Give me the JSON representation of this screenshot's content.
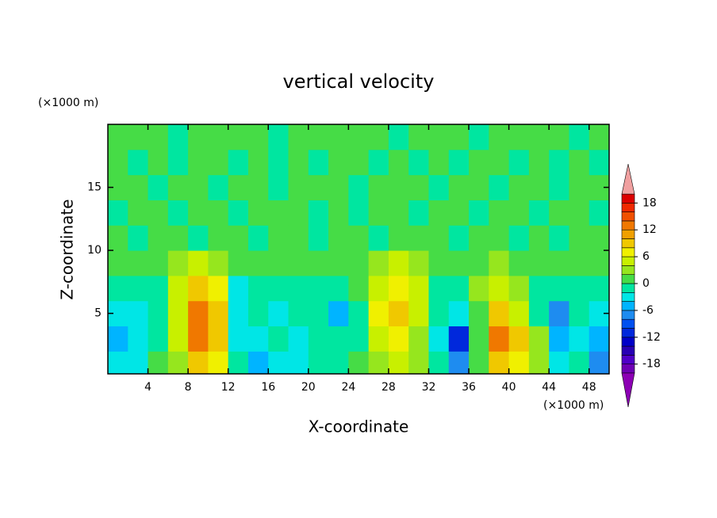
{
  "chart_data": {
    "type": "heatmap",
    "title": "vertical velocity",
    "x_label": "X-coordinate",
    "y_label": "Z-coordinate",
    "x_unit": "(×1000 m)",
    "y_unit": "(×1000 m)",
    "xlim": [
      0,
      50
    ],
    "ylim": [
      0.2,
      20
    ],
    "xticks": [
      4,
      8,
      12,
      16,
      20,
      24,
      28,
      32,
      36,
      40,
      44,
      48
    ],
    "yticks": [
      5,
      10,
      15
    ],
    "x": [
      1,
      3,
      5,
      7,
      9,
      11,
      13,
      15,
      17,
      19,
      21,
      23,
      25,
      27,
      29,
      31,
      33,
      35,
      37,
      39,
      41,
      43,
      45,
      47,
      49
    ],
    "y": [
      1,
      3,
      5,
      7,
      9,
      11,
      13,
      15,
      17,
      19
    ],
    "z": [
      [
        -3,
        -4,
        1,
        2,
        8,
        6,
        -2,
        -5,
        -3,
        -3,
        -2,
        -2,
        1,
        3,
        4,
        2,
        -2,
        -8,
        1,
        8,
        6,
        2,
        -3,
        -2,
        -8
      ],
      [
        -5,
        -4,
        -2,
        4,
        12,
        8,
        -3,
        -4,
        -2,
        -3,
        -2,
        -2,
        -1,
        5,
        6,
        3,
        -3,
        -12,
        0,
        12,
        8,
        2,
        -6,
        -3,
        -6
      ],
      [
        -3,
        -3,
        -2,
        5,
        12,
        8,
        -4,
        -2,
        -3,
        -2,
        -2,
        -6,
        -1,
        6,
        8,
        4,
        -2,
        -3,
        1,
        8,
        4,
        -2,
        -8,
        -2,
        -3
      ],
      [
        -2,
        -2,
        -1,
        4,
        8,
        6,
        -3,
        -2,
        -1,
        -1,
        -2,
        -2,
        0,
        4,
        6,
        4,
        -1,
        -2,
        2,
        4,
        2,
        -1,
        -2,
        -2,
        -2
      ],
      [
        0,
        1,
        0,
        2,
        4,
        3,
        0,
        1,
        0,
        1,
        0,
        1,
        1,
        2,
        4,
        2,
        1,
        0,
        1,
        2,
        1,
        0,
        1,
        0,
        1
      ],
      [
        1,
        -1,
        1,
        1,
        -1,
        1,
        1,
        -1,
        1,
        1,
        -1,
        1,
        1,
        -1,
        1,
        1,
        1,
        -1,
        1,
        1,
        -1,
        1,
        -1,
        1,
        1
      ],
      [
        -1,
        1,
        1,
        -1,
        1,
        1,
        -1,
        1,
        1,
        1,
        -1,
        1,
        -1,
        1,
        1,
        -1,
        1,
        1,
        -1,
        1,
        1,
        -1,
        1,
        1,
        -1
      ],
      [
        1,
        1,
        -1,
        1,
        1,
        -1,
        1,
        1,
        -1,
        1,
        1,
        1,
        -1,
        1,
        1,
        1,
        -1,
        1,
        1,
        -1,
        1,
        1,
        -1,
        1,
        1
      ],
      [
        1,
        -1,
        1,
        -1,
        1,
        1,
        -1,
        1,
        -1,
        1,
        -1,
        1,
        1,
        -1,
        1,
        -1,
        1,
        -1,
        1,
        1,
        -1,
        1,
        -1,
        1,
        -1
      ],
      [
        1,
        1,
        1,
        -1,
        1,
        1,
        1,
        1,
        -1,
        1,
        1,
        1,
        1,
        1,
        -1,
        1,
        1,
        1,
        -1,
        1,
        1,
        1,
        1,
        -1,
        1
      ]
    ],
    "levels": [
      -20,
      -18,
      -16,
      -14,
      -12,
      -10,
      -8,
      -6,
      -4,
      -2,
      0,
      2,
      4,
      6,
      8,
      10,
      12,
      14,
      16,
      18,
      20
    ],
    "colors": [
      "#8c00b4",
      "#6e00b4",
      "#5000c8",
      "#2800b4",
      "#0000c8",
      "#0028dc",
      "#0050f0",
      "#1e8cf0",
      "#00b4ff",
      "#00e6e6",
      "#00e6a0",
      "#46dc46",
      "#96e61e",
      "#c8f000",
      "#f0f000",
      "#f0c800",
      "#f0a000",
      "#f07800",
      "#f05000",
      "#f02800",
      "#dc0000",
      "#f0a0a0"
    ],
    "colorbar_ticks": [
      -18,
      -12,
      -6,
      0,
      6,
      12,
      18
    ]
  }
}
